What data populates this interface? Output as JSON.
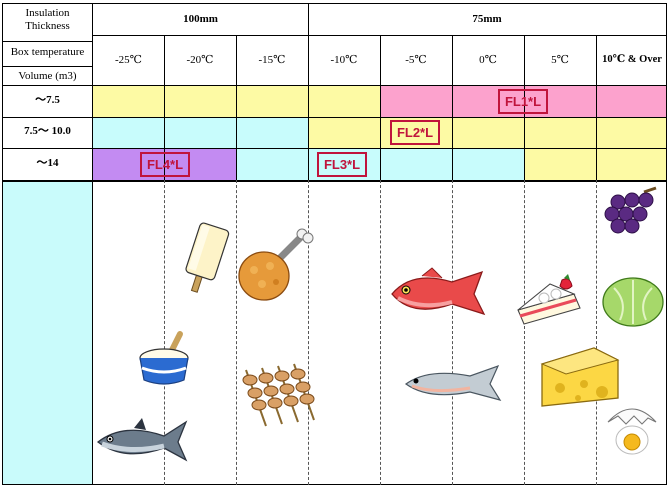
{
  "header": {
    "insulation_label": "Insulation\nThickness",
    "thickness_100": "100mm",
    "thickness_75": "75mm",
    "box_temp_label": "Box temperature",
    "volume_label": "Volume (m3)"
  },
  "temperatures": [
    "-25℃",
    "-20℃",
    "-15℃",
    "-10℃",
    "-5℃",
    "0℃",
    "5℃",
    "10℃ & Over"
  ],
  "volumes": [
    "～7.5",
    "7.5～ 10.0",
    "～14"
  ],
  "models": {
    "fl1": "FL1*L",
    "fl2": "FL2*L",
    "fl3": "FL3*L",
    "fl4": "FL4*L"
  },
  "colors": {
    "yellow": "#fdfaa4",
    "pink": "#fca2cd",
    "cyan": "#c8fcfc",
    "purple": "#c38bf2",
    "left_cyan": "#c9fbfb",
    "model_red": "#c0143c"
  },
  "food_icons": [
    "ice-pop-icon",
    "fried-chicken-icon",
    "ice-cream-cup-icon",
    "yakitori-skewers-icon",
    "tuna-icon",
    "red-snapper-icon",
    "salmon-icon",
    "strawberry-shortcake-icon",
    "cheese-icon",
    "grapes-icon",
    "lettuce-icon",
    "cracked-egg-icon"
  ]
}
